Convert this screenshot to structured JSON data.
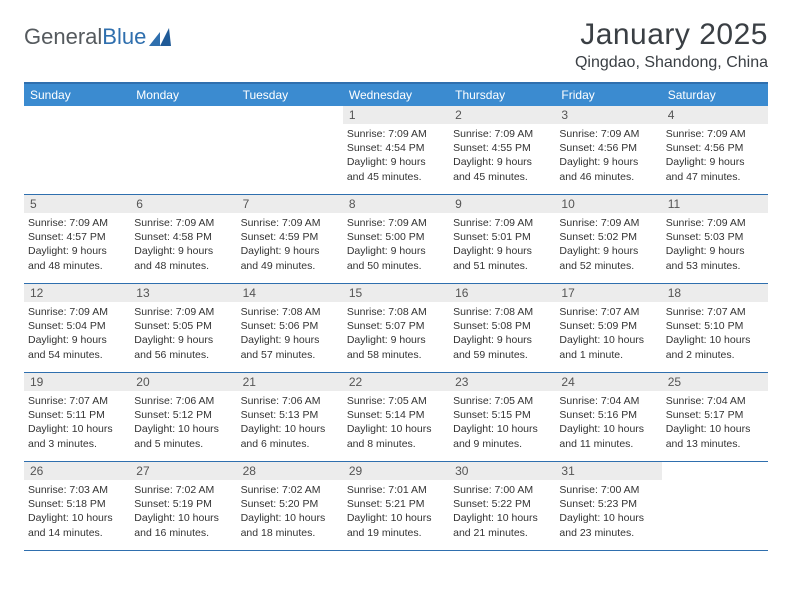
{
  "logo": {
    "text1": "General",
    "text2": "Blue"
  },
  "title": "January 2025",
  "location": "Qingdao, Shandong, China",
  "colors": {
    "header_bar": "#3b8bd0",
    "rule": "#2f6fae",
    "daynum_bg": "#ececec",
    "text_dark": "#3a3f44",
    "logo_gray": "#555a5e",
    "logo_blue": "#2f6fae"
  },
  "weekdays": [
    "Sunday",
    "Monday",
    "Tuesday",
    "Wednesday",
    "Thursday",
    "Friday",
    "Saturday"
  ],
  "weeks": [
    [
      {
        "num": "",
        "empty": true
      },
      {
        "num": "",
        "empty": true
      },
      {
        "num": "",
        "empty": true
      },
      {
        "num": "1",
        "sunrise": "Sunrise: 7:09 AM",
        "sunset": "Sunset: 4:54 PM",
        "daylight1": "Daylight: 9 hours",
        "daylight2": "and 45 minutes."
      },
      {
        "num": "2",
        "sunrise": "Sunrise: 7:09 AM",
        "sunset": "Sunset: 4:55 PM",
        "daylight1": "Daylight: 9 hours",
        "daylight2": "and 45 minutes."
      },
      {
        "num": "3",
        "sunrise": "Sunrise: 7:09 AM",
        "sunset": "Sunset: 4:56 PM",
        "daylight1": "Daylight: 9 hours",
        "daylight2": "and 46 minutes."
      },
      {
        "num": "4",
        "sunrise": "Sunrise: 7:09 AM",
        "sunset": "Sunset: 4:56 PM",
        "daylight1": "Daylight: 9 hours",
        "daylight2": "and 47 minutes."
      }
    ],
    [
      {
        "num": "5",
        "sunrise": "Sunrise: 7:09 AM",
        "sunset": "Sunset: 4:57 PM",
        "daylight1": "Daylight: 9 hours",
        "daylight2": "and 48 minutes."
      },
      {
        "num": "6",
        "sunrise": "Sunrise: 7:09 AM",
        "sunset": "Sunset: 4:58 PM",
        "daylight1": "Daylight: 9 hours",
        "daylight2": "and 48 minutes."
      },
      {
        "num": "7",
        "sunrise": "Sunrise: 7:09 AM",
        "sunset": "Sunset: 4:59 PM",
        "daylight1": "Daylight: 9 hours",
        "daylight2": "and 49 minutes."
      },
      {
        "num": "8",
        "sunrise": "Sunrise: 7:09 AM",
        "sunset": "Sunset: 5:00 PM",
        "daylight1": "Daylight: 9 hours",
        "daylight2": "and 50 minutes."
      },
      {
        "num": "9",
        "sunrise": "Sunrise: 7:09 AM",
        "sunset": "Sunset: 5:01 PM",
        "daylight1": "Daylight: 9 hours",
        "daylight2": "and 51 minutes."
      },
      {
        "num": "10",
        "sunrise": "Sunrise: 7:09 AM",
        "sunset": "Sunset: 5:02 PM",
        "daylight1": "Daylight: 9 hours",
        "daylight2": "and 52 minutes."
      },
      {
        "num": "11",
        "sunrise": "Sunrise: 7:09 AM",
        "sunset": "Sunset: 5:03 PM",
        "daylight1": "Daylight: 9 hours",
        "daylight2": "and 53 minutes."
      }
    ],
    [
      {
        "num": "12",
        "sunrise": "Sunrise: 7:09 AM",
        "sunset": "Sunset: 5:04 PM",
        "daylight1": "Daylight: 9 hours",
        "daylight2": "and 54 minutes."
      },
      {
        "num": "13",
        "sunrise": "Sunrise: 7:09 AM",
        "sunset": "Sunset: 5:05 PM",
        "daylight1": "Daylight: 9 hours",
        "daylight2": "and 56 minutes."
      },
      {
        "num": "14",
        "sunrise": "Sunrise: 7:08 AM",
        "sunset": "Sunset: 5:06 PM",
        "daylight1": "Daylight: 9 hours",
        "daylight2": "and 57 minutes."
      },
      {
        "num": "15",
        "sunrise": "Sunrise: 7:08 AM",
        "sunset": "Sunset: 5:07 PM",
        "daylight1": "Daylight: 9 hours",
        "daylight2": "and 58 minutes."
      },
      {
        "num": "16",
        "sunrise": "Sunrise: 7:08 AM",
        "sunset": "Sunset: 5:08 PM",
        "daylight1": "Daylight: 9 hours",
        "daylight2": "and 59 minutes."
      },
      {
        "num": "17",
        "sunrise": "Sunrise: 7:07 AM",
        "sunset": "Sunset: 5:09 PM",
        "daylight1": "Daylight: 10 hours",
        "daylight2": "and 1 minute."
      },
      {
        "num": "18",
        "sunrise": "Sunrise: 7:07 AM",
        "sunset": "Sunset: 5:10 PM",
        "daylight1": "Daylight: 10 hours",
        "daylight2": "and 2 minutes."
      }
    ],
    [
      {
        "num": "19",
        "sunrise": "Sunrise: 7:07 AM",
        "sunset": "Sunset: 5:11 PM",
        "daylight1": "Daylight: 10 hours",
        "daylight2": "and 3 minutes."
      },
      {
        "num": "20",
        "sunrise": "Sunrise: 7:06 AM",
        "sunset": "Sunset: 5:12 PM",
        "daylight1": "Daylight: 10 hours",
        "daylight2": "and 5 minutes."
      },
      {
        "num": "21",
        "sunrise": "Sunrise: 7:06 AM",
        "sunset": "Sunset: 5:13 PM",
        "daylight1": "Daylight: 10 hours",
        "daylight2": "and 6 minutes."
      },
      {
        "num": "22",
        "sunrise": "Sunrise: 7:05 AM",
        "sunset": "Sunset: 5:14 PM",
        "daylight1": "Daylight: 10 hours",
        "daylight2": "and 8 minutes."
      },
      {
        "num": "23",
        "sunrise": "Sunrise: 7:05 AM",
        "sunset": "Sunset: 5:15 PM",
        "daylight1": "Daylight: 10 hours",
        "daylight2": "and 9 minutes."
      },
      {
        "num": "24",
        "sunrise": "Sunrise: 7:04 AM",
        "sunset": "Sunset: 5:16 PM",
        "daylight1": "Daylight: 10 hours",
        "daylight2": "and 11 minutes."
      },
      {
        "num": "25",
        "sunrise": "Sunrise: 7:04 AM",
        "sunset": "Sunset: 5:17 PM",
        "daylight1": "Daylight: 10 hours",
        "daylight2": "and 13 minutes."
      }
    ],
    [
      {
        "num": "26",
        "sunrise": "Sunrise: 7:03 AM",
        "sunset": "Sunset: 5:18 PM",
        "daylight1": "Daylight: 10 hours",
        "daylight2": "and 14 minutes."
      },
      {
        "num": "27",
        "sunrise": "Sunrise: 7:02 AM",
        "sunset": "Sunset: 5:19 PM",
        "daylight1": "Daylight: 10 hours",
        "daylight2": "and 16 minutes."
      },
      {
        "num": "28",
        "sunrise": "Sunrise: 7:02 AM",
        "sunset": "Sunset: 5:20 PM",
        "daylight1": "Daylight: 10 hours",
        "daylight2": "and 18 minutes."
      },
      {
        "num": "29",
        "sunrise": "Sunrise: 7:01 AM",
        "sunset": "Sunset: 5:21 PM",
        "daylight1": "Daylight: 10 hours",
        "daylight2": "and 19 minutes."
      },
      {
        "num": "30",
        "sunrise": "Sunrise: 7:00 AM",
        "sunset": "Sunset: 5:22 PM",
        "daylight1": "Daylight: 10 hours",
        "daylight2": "and 21 minutes."
      },
      {
        "num": "31",
        "sunrise": "Sunrise: 7:00 AM",
        "sunset": "Sunset: 5:23 PM",
        "daylight1": "Daylight: 10 hours",
        "daylight2": "and 23 minutes."
      },
      {
        "num": "",
        "empty": true
      }
    ]
  ]
}
